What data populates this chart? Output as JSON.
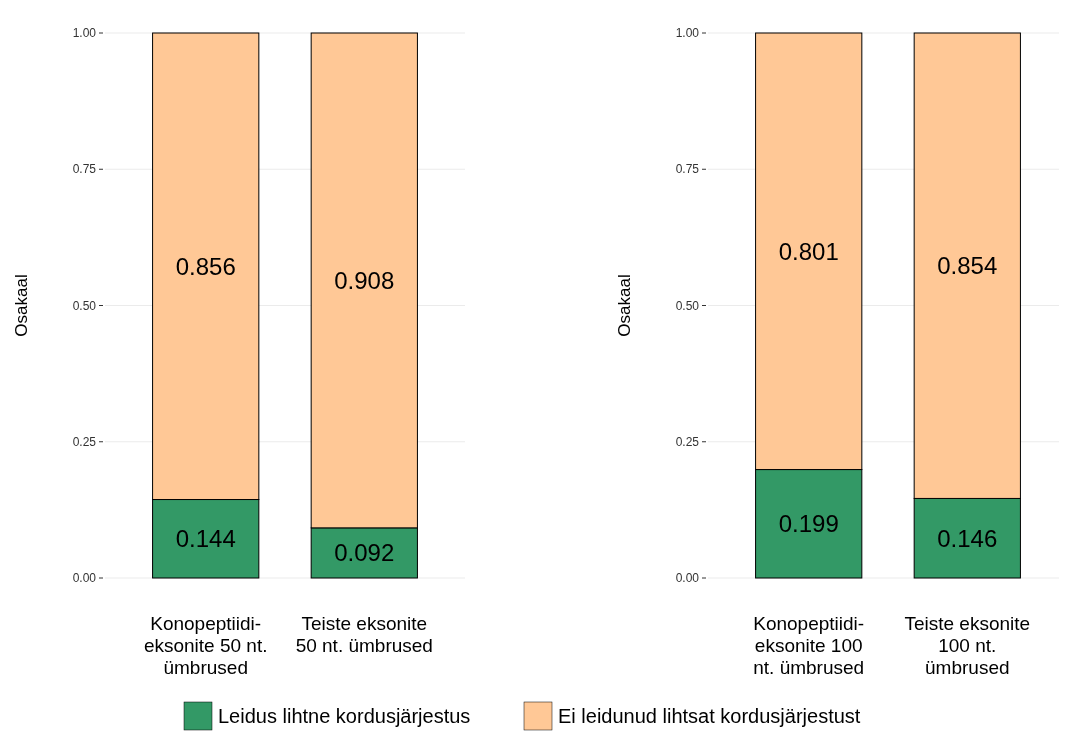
{
  "chart_data": [
    {
      "type": "bar",
      "stacked": true,
      "ylabel": "Osakaal",
      "categories": [
        "Konopeptiidi-eksonite 50 nt. ümbrused",
        "Teiste eksonite 50 nt. ümbrused"
      ],
      "series": [
        {
          "name": "Leidus lihtne kordusjärjestus",
          "color": "#339966",
          "values": [
            0.144,
            0.092
          ]
        },
        {
          "name": "Ei leidunud lihtsat kordusjärjestust",
          "color": "#ffc896",
          "values": [
            0.856,
            0.908
          ]
        }
      ],
      "ylim": [
        0,
        1
      ],
      "yticks": [
        {
          "value": 0,
          "label": "0.00"
        },
        {
          "value": 0.25,
          "label": "0.25"
        },
        {
          "value": 0.5,
          "label": "0.50"
        },
        {
          "value": 0.75,
          "label": "0.75"
        },
        {
          "value": 1,
          "label": "1.00"
        }
      ],
      "grid": "y",
      "data_labels": true,
      "legend": "bottom"
    },
    {
      "type": "bar",
      "stacked": true,
      "ylabel": "Osakaal",
      "categories": [
        "Konopeptiidi-eksonite 100 nt. ümbrused",
        "Teiste eksonite 100 nt. ümbrused"
      ],
      "series": [
        {
          "name": "Leidus lihtne kordusjärjestus",
          "color": "#339966",
          "values": [
            0.199,
            0.146
          ]
        },
        {
          "name": "Ei leidunud lihtsat kordusjärjestust",
          "color": "#ffc896",
          "values": [
            0.801,
            0.854
          ]
        }
      ],
      "ylim": [
        0,
        1
      ],
      "yticks": [
        {
          "value": 0,
          "label": "0.00"
        },
        {
          "value": 0.25,
          "label": "0.25"
        },
        {
          "value": 0.5,
          "label": "0.50"
        },
        {
          "value": 0.75,
          "label": "0.75"
        },
        {
          "value": 1,
          "label": "1.00"
        }
      ],
      "grid": "y",
      "data_labels": true,
      "legend": "bottom"
    }
  ]
}
